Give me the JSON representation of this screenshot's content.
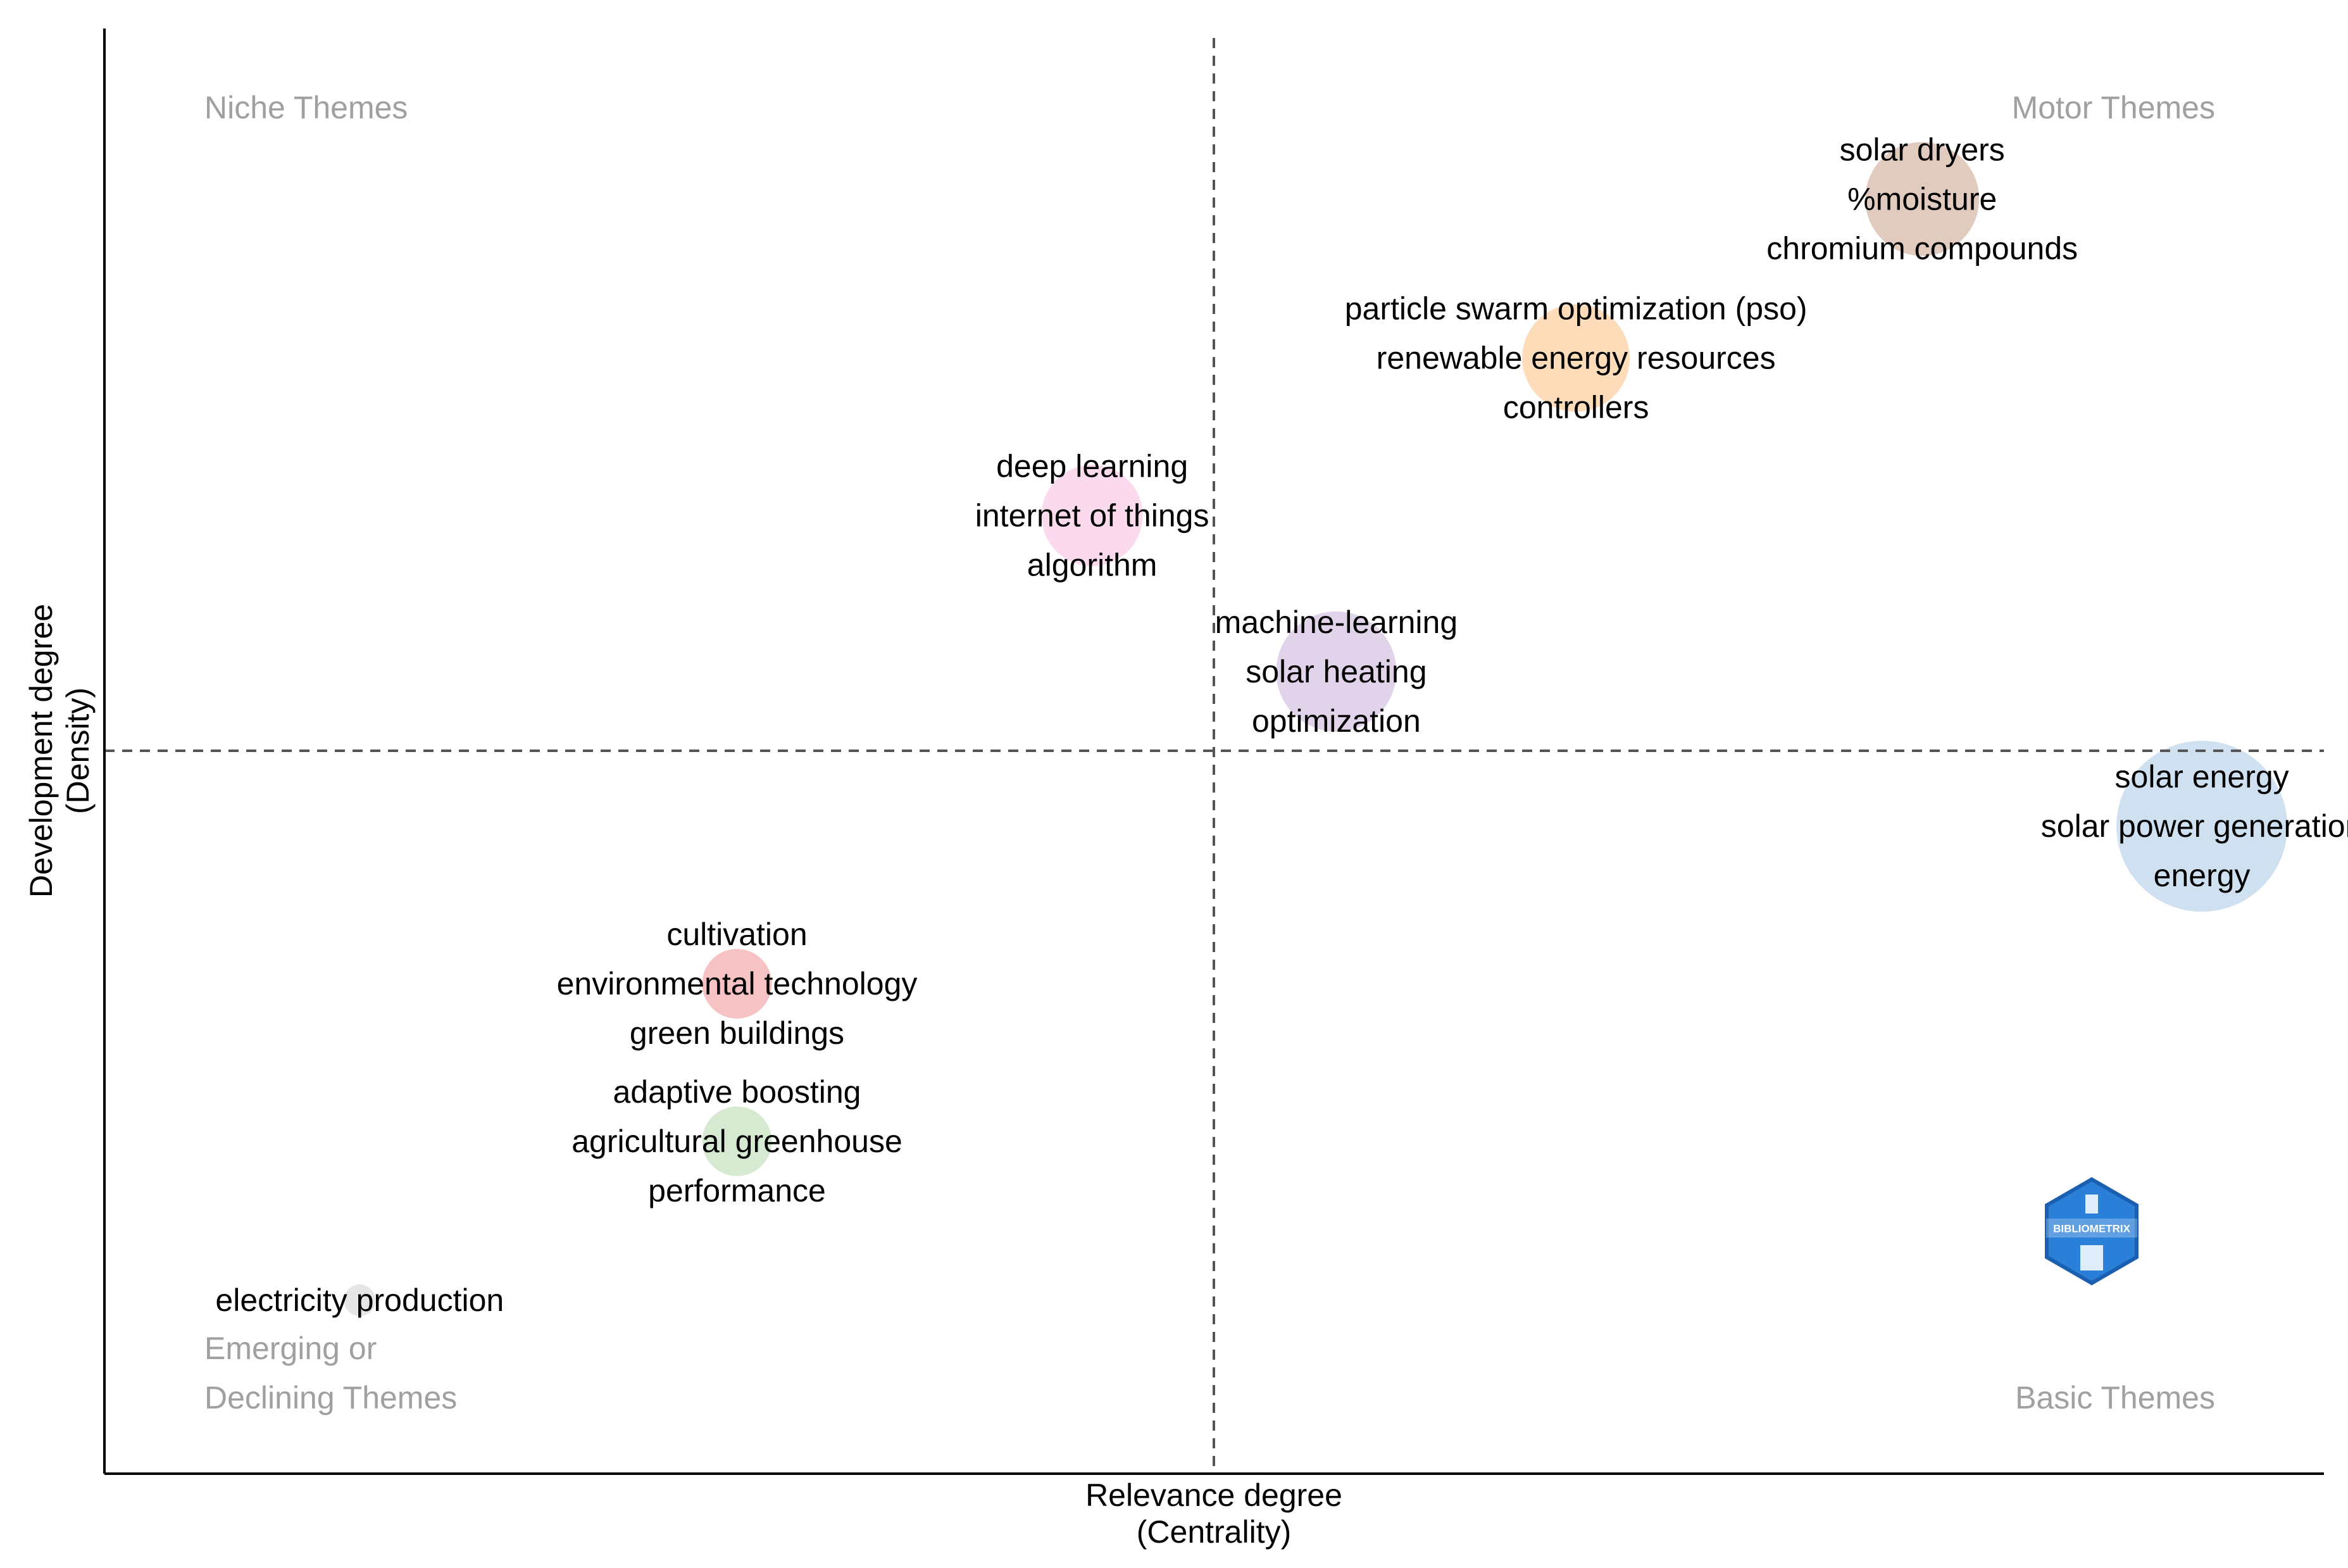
{
  "chart_data": {
    "type": "scatter",
    "xlabel": [
      "Relevance degree",
      "(Centrality)"
    ],
    "ylabel": [
      "Development degree",
      "(Density)"
    ],
    "grid": false,
    "quadrant_labels": {
      "top_left": [
        "Niche Themes"
      ],
      "top_right": [
        "Motor Themes"
      ],
      "bottom_left": [
        "Emerging or",
        "Declining Themes"
      ],
      "bottom_right": [
        "Basic Themes"
      ]
    },
    "logo": {
      "name": "bibliometrix-logo-icon",
      "text": "BIBLIOMETRIX"
    },
    "clusters": [
      {
        "x": 0.819,
        "y": 0.882,
        "size": 90,
        "color": "#dcc2b3",
        "labels": [
          "solar dryers",
          "%moisture",
          "chromium compounds"
        ]
      },
      {
        "x": 0.663,
        "y": 0.772,
        "size": 85,
        "color": "#fed6ad",
        "labels": [
          "particle swarm optimization (pso)",
          "renewable energy resources",
          "controllers"
        ]
      },
      {
        "x": 0.445,
        "y": 0.663,
        "size": 80,
        "color": "#fbd4eb",
        "labels": [
          "deep learning",
          "internet of things",
          "algorithm"
        ]
      },
      {
        "x": 0.555,
        "y": 0.555,
        "size": 95,
        "color": "#dccbe6",
        "labels": [
          "machine-learning",
          "solar heating",
          "optimization"
        ]
      },
      {
        "x": 0.945,
        "y": 0.448,
        "size": 135,
        "color": "#c7dcee",
        "labels": [
          "solar energy",
          "solar power generation",
          "energy"
        ]
      },
      {
        "x": 0.285,
        "y": 0.339,
        "size": 55,
        "color": "#f6b7b8",
        "labels": [
          "cultivation",
          "environmental technology",
          "green buildings"
        ]
      },
      {
        "x": 0.285,
        "y": 0.23,
        "size": 55,
        "color": "#cfe6c9",
        "labels": [
          "adaptive boosting",
          "agricultural greenhouse",
          "performance"
        ]
      },
      {
        "x": 0.115,
        "y": 0.12,
        "size": 25,
        "color": "#e2e2e2",
        "labels": [
          "electricity production"
        ]
      }
    ]
  }
}
